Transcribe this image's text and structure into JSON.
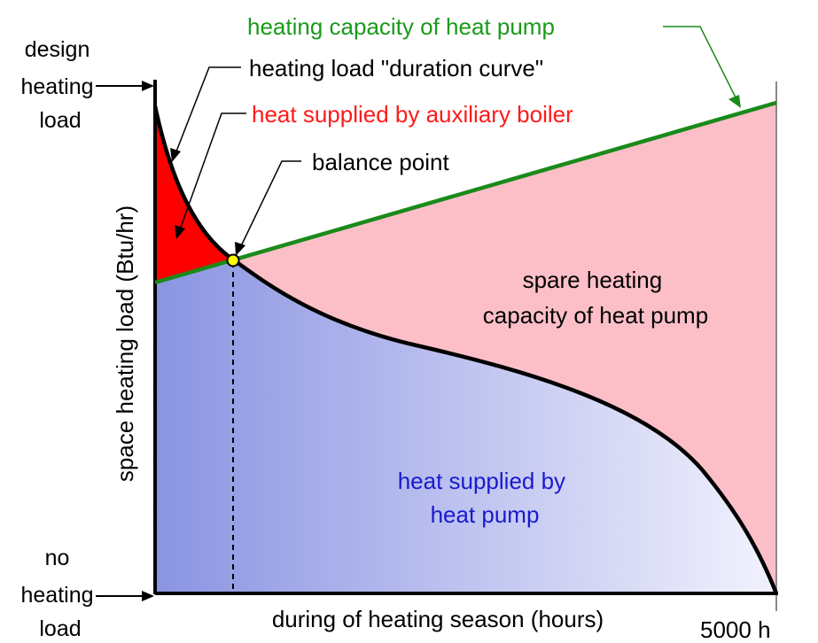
{
  "diagram": {
    "labels": {
      "design_load": [
        "design",
        "heating",
        "load"
      ],
      "no_load": [
        "no",
        "heating",
        "load"
      ],
      "y_axis": "space heating load (Btu/hr)",
      "x_axis": "during of heating season (hours)",
      "x_end": "5000 h",
      "heat_pump_capacity": "heating capacity of heat pump",
      "duration_curve": "heating load \"duration curve\"",
      "aux_boiler": "heat supplied by auxiliary boiler",
      "balance_point": "balance point",
      "spare_capacity": [
        "spare heating",
        "capacity of heat pump"
      ],
      "heat_pump_supply": [
        "heat supplied by",
        "heat pump"
      ]
    },
    "colors": {
      "capacity_line": "#1a8a1a",
      "capacity_text": "#1a9a1a",
      "boiler_fill": "#ff0000",
      "boiler_text": "#ff1a1a",
      "spare_fill": "#fcbfc8",
      "pump_fill_left": "#8a94e2",
      "pump_fill_right": "#f2f2fd",
      "pump_text": "#1a1acc",
      "balance_point": "#ffff00"
    }
  }
}
